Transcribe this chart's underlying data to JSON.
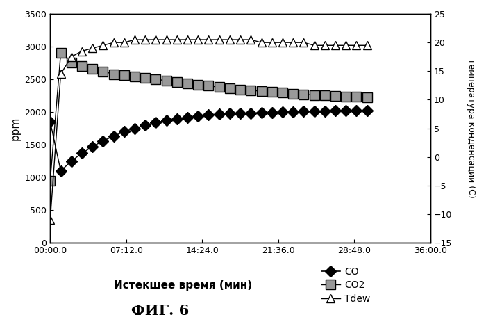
{
  "title_fig": "ФИГ. 6",
  "xlabel": "Истекшее время (мин)",
  "ylabel_left": "ppm",
  "ylabel_right": "температура конденсации (С)",
  "ylim_left": [
    0,
    3500
  ],
  "ylim_right": [
    -15,
    25
  ],
  "xlim": [
    0,
    36
  ],
  "xtick_labels": [
    "00:00.0",
    "07:12.0",
    "14:24.0",
    "21:36.0",
    "28:48.0",
    "36:00.0"
  ],
  "xtick_positions": [
    0,
    7.2,
    14.4,
    21.6,
    28.8,
    36.0
  ],
  "ytick_left": [
    0,
    500,
    1000,
    1500,
    2000,
    2500,
    3000,
    3500
  ],
  "ytick_right": [
    -15,
    -10,
    -5,
    0,
    5,
    10,
    15,
    20,
    25
  ],
  "CO_x": [
    0.0,
    1.0,
    2.0,
    3.0,
    4.0,
    5.0,
    6.0,
    7.0,
    8.0,
    9.0,
    10.0,
    11.0,
    12.0,
    13.0,
    14.0,
    15.0,
    16.0,
    17.0,
    18.0,
    19.0,
    20.0,
    21.0,
    22.0,
    23.0,
    24.0,
    25.0,
    26.0,
    27.0,
    28.0,
    29.0,
    30.0
  ],
  "CO_y": [
    1850,
    1100,
    1250,
    1370,
    1470,
    1560,
    1630,
    1700,
    1750,
    1800,
    1840,
    1870,
    1900,
    1920,
    1940,
    1955,
    1965,
    1975,
    1980,
    1985,
    1990,
    1995,
    2000,
    2005,
    2010,
    2015,
    2015,
    2020,
    2020,
    2020,
    2025
  ],
  "CO2_x": [
    0.0,
    1.0,
    2.0,
    3.0,
    4.0,
    5.0,
    6.0,
    7.0,
    8.0,
    9.0,
    10.0,
    11.0,
    12.0,
    13.0,
    14.0,
    15.0,
    16.0,
    17.0,
    18.0,
    19.0,
    20.0,
    21.0,
    22.0,
    23.0,
    24.0,
    25.0,
    26.0,
    27.0,
    28.0,
    29.0,
    30.0
  ],
  "CO2_y": [
    950,
    2900,
    2760,
    2700,
    2660,
    2620,
    2580,
    2560,
    2540,
    2520,
    2500,
    2480,
    2460,
    2440,
    2420,
    2400,
    2380,
    2360,
    2345,
    2330,
    2320,
    2310,
    2295,
    2280,
    2270,
    2260,
    2255,
    2245,
    2235,
    2230,
    2220
  ],
  "Tdew_x": [
    0.0,
    1.0,
    2.0,
    3.0,
    4.0,
    5.0,
    6.0,
    7.0,
    8.0,
    9.0,
    10.0,
    11.0,
    12.0,
    13.0,
    14.0,
    15.0,
    16.0,
    17.0,
    18.0,
    19.0,
    20.0,
    21.0,
    22.0,
    23.0,
    24.0,
    25.0,
    26.0,
    27.0,
    28.0,
    29.0,
    30.0
  ],
  "Tdew_y": [
    -11,
    14.5,
    17.5,
    18.5,
    19.0,
    19.5,
    20.0,
    20.0,
    20.5,
    20.5,
    20.5,
    20.5,
    20.5,
    20.5,
    20.5,
    20.5,
    20.5,
    20.5,
    20.5,
    20.5,
    20.0,
    20.0,
    20.0,
    20.0,
    20.0,
    19.5,
    19.5,
    19.5,
    19.5,
    19.5,
    19.5
  ],
  "bg_color": "#ffffff",
  "legend_CO": "CO",
  "legend_CO2": "CO2",
  "legend_Tdew": "Tdew"
}
